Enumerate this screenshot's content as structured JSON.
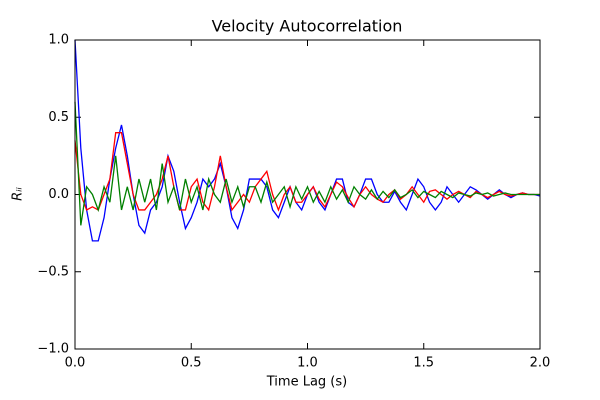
{
  "chart_data": {
    "type": "line",
    "title": "Velocity Autocorrelation",
    "xlabel": "Time Lag (s)",
    "ylabel": "Rᵢᵢ",
    "x": [
      0,
      0.025,
      0.05,
      0.075,
      0.1,
      0.125,
      0.15,
      0.175,
      0.2,
      0.225,
      0.25,
      0.275,
      0.3,
      0.325,
      0.35,
      0.375,
      0.4,
      0.425,
      0.45,
      0.475,
      0.5,
      0.525,
      0.55,
      0.575,
      0.6,
      0.625,
      0.65,
      0.675,
      0.7,
      0.725,
      0.75,
      0.775,
      0.8,
      0.825,
      0.85,
      0.875,
      0.9,
      0.925,
      0.95,
      0.975,
      1.0,
      1.025,
      1.05,
      1.075,
      1.1,
      1.125,
      1.15,
      1.175,
      1.2,
      1.225,
      1.25,
      1.275,
      1.3,
      1.325,
      1.35,
      1.375,
      1.4,
      1.425,
      1.45,
      1.475,
      1.5,
      1.525,
      1.55,
      1.575,
      1.6,
      1.625,
      1.65,
      1.675,
      1.7,
      1.725,
      1.75,
      1.775,
      1.8,
      1.825,
      1.85,
      1.875,
      1.9,
      1.925,
      1.95,
      1.975,
      2.0
    ],
    "series": [
      {
        "color": "#0000ff",
        "values": [
          1.0,
          0.3,
          -0.1,
          -0.3,
          -0.3,
          -0.15,
          0.1,
          0.3,
          0.45,
          0.25,
          0.0,
          -0.2,
          -0.25,
          -0.1,
          -0.05,
          0.05,
          0.25,
          0.15,
          -0.05,
          -0.22,
          -0.15,
          -0.05,
          0.1,
          0.05,
          0.1,
          0.2,
          0.05,
          -0.15,
          -0.22,
          -0.1,
          0.1,
          0.1,
          0.1,
          0.05,
          -0.1,
          -0.15,
          -0.05,
          0.05,
          -0.05,
          -0.1,
          0.0,
          0.05,
          -0.05,
          -0.1,
          0.0,
          0.1,
          0.1,
          -0.05,
          -0.08,
          0.0,
          0.1,
          0.1,
          0.0,
          -0.05,
          -0.05,
          0.02,
          -0.05,
          -0.1,
          0.0,
          0.1,
          0.05,
          -0.05,
          -0.1,
          -0.05,
          0.05,
          0.0,
          -0.05,
          0.0,
          0.05,
          0.03,
          0.0,
          -0.03,
          0.0,
          0.03,
          0.0,
          -0.02,
          0.0,
          0.01,
          0.0,
          0.0,
          -0.01
        ]
      },
      {
        "color": "#ff0000",
        "values": [
          0.35,
          0.0,
          -0.1,
          -0.08,
          -0.1,
          0.0,
          0.1,
          0.4,
          0.4,
          0.2,
          0.0,
          -0.1,
          -0.1,
          -0.05,
          0.0,
          0.1,
          0.25,
          0.05,
          -0.1,
          -0.1,
          0.05,
          0.1,
          -0.05,
          -0.1,
          0.05,
          0.25,
          0.05,
          -0.1,
          -0.05,
          0.0,
          -0.05,
          0.05,
          0.1,
          0.15,
          0.0,
          -0.1,
          0.0,
          0.05,
          -0.05,
          -0.05,
          0.0,
          0.05,
          -0.03,
          -0.08,
          0.0,
          0.08,
          0.05,
          -0.02,
          -0.08,
          0.0,
          0.05,
          0.0,
          -0.03,
          -0.05,
          0.0,
          0.03,
          -0.03,
          0.0,
          0.05,
          0.0,
          -0.05,
          0.02,
          0.03,
          0.0,
          -0.03,
          0.0,
          0.02,
          0.0,
          -0.02,
          0.02,
          0.0,
          -0.02,
          0.0,
          0.02,
          0.0,
          -0.01,
          0.0,
          0.01,
          0.0,
          0.0,
          0.0
        ]
      },
      {
        "color": "#008000",
        "values": [
          0.6,
          -0.2,
          0.05,
          0.0,
          -0.1,
          0.05,
          -0.05,
          0.25,
          -0.1,
          0.05,
          -0.1,
          0.1,
          -0.05,
          0.1,
          -0.1,
          0.2,
          -0.05,
          0.05,
          -0.1,
          0.1,
          -0.05,
          0.05,
          -0.1,
          0.1,
          0.0,
          -0.05,
          0.1,
          -0.05,
          0.05,
          -0.08,
          0.05,
          0.05,
          -0.05,
          0.08,
          -0.05,
          0.0,
          0.05,
          -0.08,
          0.05,
          -0.03,
          0.05,
          -0.05,
          0.02,
          -0.05,
          0.05,
          -0.03,
          0.03,
          -0.05,
          0.05,
          0.0,
          -0.03,
          0.03,
          -0.03,
          0.02,
          -0.02,
          0.03,
          -0.02,
          0.0,
          0.03,
          -0.02,
          0.02,
          0.0,
          -0.02,
          0.02,
          0.0,
          -0.02,
          0.01,
          0.0,
          -0.01,
          0.01,
          0.0,
          0.01,
          -0.01,
          0.0,
          0.01,
          0.0,
          0.0,
          0.0,
          0.0,
          0.0,
          0.0
        ]
      }
    ],
    "xlim": [
      0,
      2
    ],
    "ylim": [
      -1,
      1
    ],
    "xticks": [
      {
        "value": 0,
        "label": "0.0"
      },
      0.5,
      {
        "value": 1,
        "label": "1.0"
      },
      1.5,
      {
        "value": 2,
        "label": "2.0"
      }
    ],
    "yticks": [
      {
        "value": -1,
        "label": "−1.0"
      },
      {
        "value": -0.5,
        "label": "−0.5"
      },
      {
        "value": 0,
        "label": "0.0"
      },
      0.5,
      {
        "value": 1,
        "label": "1.0"
      }
    ],
    "grid": false
  }
}
